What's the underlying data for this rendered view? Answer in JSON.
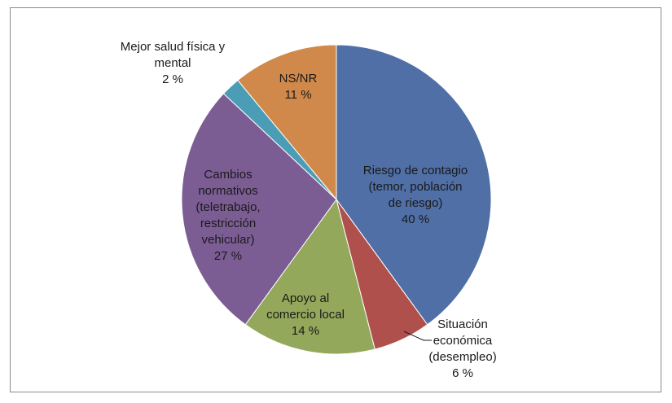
{
  "chart_data": {
    "type": "pie",
    "title": "",
    "slices": [
      {
        "label": [
          "Riesgo de contagio",
          "(temor, población",
          "de riesgo)"
        ],
        "pct_label": "40 %",
        "value": 40,
        "color": "#4f6fa6"
      },
      {
        "label": [
          "Situación",
          "económica",
          "(desempleo)"
        ],
        "pct_label": "6 %",
        "value": 6,
        "color": "#b0504c"
      },
      {
        "label": [
          "Apoyo al",
          "comercio local"
        ],
        "pct_label": "14 %",
        "value": 14,
        "color": "#93a85b"
      },
      {
        "label": [
          "Cambios",
          "normativos",
          "(teletrabajo,",
          "restricción",
          "vehicular)"
        ],
        "pct_label": "27 %",
        "value": 27,
        "color": "#7b5d94"
      },
      {
        "label": [
          "Mejor salud física y",
          "mental"
        ],
        "pct_label": "2 %",
        "value": 2,
        "color": "#4b9db5"
      },
      {
        "label": [
          "NS/NR"
        ],
        "pct_label": "11 %",
        "value": 11,
        "color": "#d0894a"
      }
    ]
  }
}
